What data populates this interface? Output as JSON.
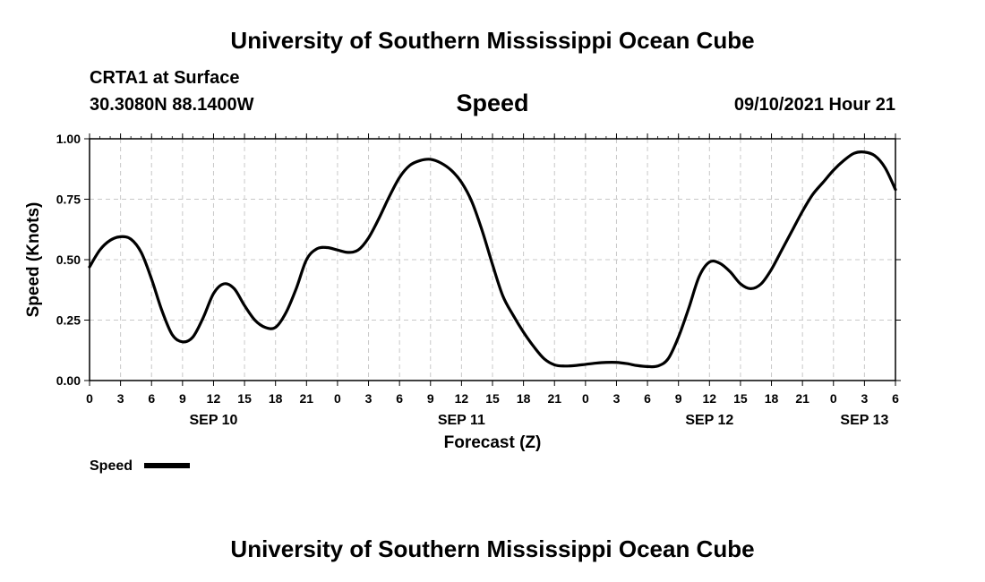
{
  "header": {
    "title_top": "University of Southern Mississippi Ocean Cube",
    "station": "CRTA1 at Surface",
    "coords": "30.3080N  88.1400W",
    "variable": "Speed",
    "datetime": "09/10/2021 Hour 21",
    "title_bottom": "University of Southern Mississippi Ocean Cube"
  },
  "chart_data": {
    "type": "line",
    "title": "Speed",
    "xlabel": "Forecast (Z)",
    "ylabel": "Speed (Knots)",
    "ylim": [
      0,
      1
    ],
    "xlim": [
      0,
      78
    ],
    "grid": true,
    "legend": "bottom-left",
    "y_ticks": [
      0,
      0.25,
      0.5,
      0.75,
      1.0
    ],
    "y_tick_labels": [
      "0.00",
      "0.25",
      "0.50",
      "0.75",
      "1.00"
    ],
    "x_ticks": [
      0,
      3,
      6,
      9,
      12,
      15,
      18,
      21,
      24,
      27,
      30,
      33,
      36,
      39,
      42,
      45,
      48,
      51,
      54,
      57,
      60,
      63,
      66,
      69,
      72,
      75,
      78
    ],
    "x_tick_labels": [
      "0",
      "3",
      "6",
      "9",
      "12",
      "15",
      "18",
      "21",
      "0",
      "3",
      "6",
      "9",
      "12",
      "15",
      "18",
      "21",
      "0",
      "3",
      "6",
      "9",
      "12",
      "15",
      "18",
      "21",
      "0",
      "3",
      "6"
    ],
    "date_labels": [
      {
        "x": 12,
        "label": "SEP 10"
      },
      {
        "x": 36,
        "label": "SEP 11"
      },
      {
        "x": 60,
        "label": "SEP 12"
      },
      {
        "x": 75,
        "label": "SEP 13"
      }
    ],
    "series": [
      {
        "name": "Speed",
        "color": "#000000",
        "x": [
          0,
          1,
          2,
          3,
          4,
          5,
          6,
          7,
          8,
          9,
          10,
          11,
          12,
          13,
          14,
          15,
          16,
          17,
          18,
          19,
          20,
          21,
          22,
          23,
          24,
          25,
          26,
          27,
          28,
          29,
          30,
          31,
          32,
          33,
          34,
          35,
          36,
          37,
          38,
          39,
          40,
          41,
          42,
          43,
          44,
          45,
          46,
          47,
          48,
          49,
          50,
          51,
          52,
          53,
          54,
          55,
          56,
          57,
          58,
          59,
          60,
          61,
          62,
          63,
          64,
          65,
          66,
          67,
          68,
          69,
          70,
          71,
          72,
          73,
          74,
          75,
          76,
          77,
          78
        ],
        "values": [
          0.47,
          0.54,
          0.58,
          0.595,
          0.585,
          0.53,
          0.42,
          0.29,
          0.19,
          0.16,
          0.18,
          0.26,
          0.36,
          0.4,
          0.38,
          0.31,
          0.25,
          0.22,
          0.22,
          0.28,
          0.38,
          0.5,
          0.545,
          0.55,
          0.54,
          0.53,
          0.54,
          0.59,
          0.67,
          0.76,
          0.84,
          0.89,
          0.91,
          0.915,
          0.9,
          0.87,
          0.82,
          0.74,
          0.62,
          0.48,
          0.35,
          0.27,
          0.2,
          0.14,
          0.09,
          0.065,
          0.06,
          0.062,
          0.067,
          0.072,
          0.075,
          0.075,
          0.07,
          0.062,
          0.058,
          0.06,
          0.09,
          0.18,
          0.3,
          0.43,
          0.49,
          0.485,
          0.45,
          0.4,
          0.38,
          0.4,
          0.46,
          0.54,
          0.62,
          0.7,
          0.77,
          0.82,
          0.87,
          0.91,
          0.94,
          0.945,
          0.93,
          0.88,
          0.79
        ]
      }
    ]
  },
  "legend": {
    "label": "Speed"
  }
}
